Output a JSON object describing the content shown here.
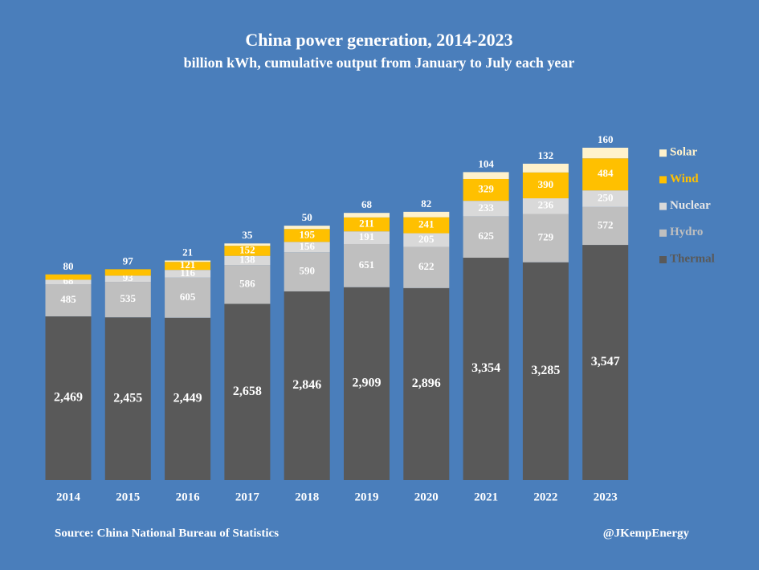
{
  "chart_data": {
    "type": "stacked_bar",
    "title": "China power generation, 2014-2023",
    "subtitle": "billion kWh, cumulative output from January to July each year",
    "categories": [
      "2014",
      "2015",
      "2016",
      "2017",
      "2018",
      "2019",
      "2020",
      "2021",
      "2022",
      "2023"
    ],
    "series": [
      {
        "name": "Thermal",
        "color": "#595959",
        "values": [
          2469,
          2455,
          2449,
          2658,
          2846,
          2909,
          2896,
          3354,
          3285,
          3547
        ],
        "value_labels": [
          "2,469",
          "2,455",
          "2,449",
          "2,658",
          "2,846",
          "2,909",
          "2,896",
          "3,354",
          "3,285",
          "3,547"
        ]
      },
      {
        "name": "Hydro",
        "color": "#bfbfbf",
        "values": [
          485,
          535,
          605,
          586,
          590,
          651,
          622,
          625,
          729,
          572
        ]
      },
      {
        "name": "Nuclear",
        "color": "#d9d9d9",
        "values": [
          68,
          93,
          116,
          138,
          156,
          191,
          205,
          233,
          236,
          250
        ]
      },
      {
        "name": "Wind",
        "color": "#ffc000",
        "values": [
          80,
          97,
          121,
          152,
          195,
          211,
          241,
          329,
          390,
          484
        ]
      },
      {
        "name": "Solar",
        "color": "#fff2cc",
        "values": [
          null,
          null,
          21,
          35,
          50,
          68,
          82,
          104,
          132,
          160
        ]
      }
    ],
    "legend": "right",
    "source": "Source: China National Bureau of Statistics",
    "credit": "@JKempEnergy"
  }
}
